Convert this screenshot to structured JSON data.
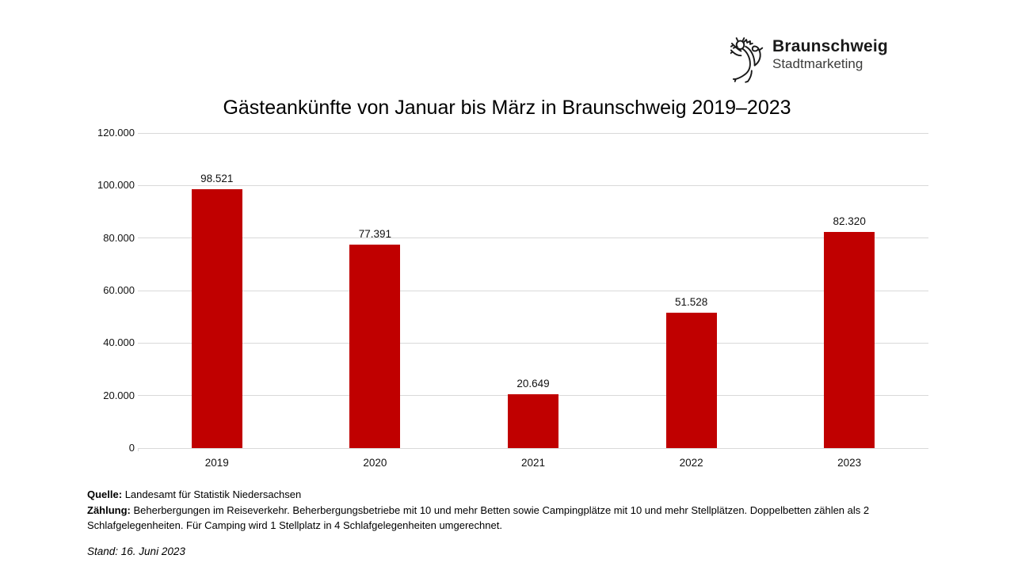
{
  "logo": {
    "brand": "Braunschweig",
    "sub": "Stadtmarketing",
    "icon": "braunschweig-lion"
  },
  "chart_data": {
    "type": "bar",
    "title": "Gästeankünfte von Januar bis März in Braunschweig 2019–2023",
    "categories": [
      "2019",
      "2020",
      "2021",
      "2022",
      "2023"
    ],
    "values": [
      98521,
      77391,
      20649,
      51528,
      82320
    ],
    "value_labels": [
      "98.521",
      "77.391",
      "20.649",
      "51.528",
      "82.320"
    ],
    "xlabel": "",
    "ylabel": "",
    "ylim": [
      0,
      120000
    ],
    "ytick_step": 20000,
    "ytick_labels": [
      "0",
      "20.000",
      "40.000",
      "60.000",
      "80.000",
      "100.000",
      "120.000"
    ],
    "grid": true,
    "legend": "none",
    "bar_color": "#c00000",
    "gridline_color": "#d9d9d9"
  },
  "footer": {
    "source_label": "Quelle:",
    "source_text": " Landesamt für Statistik Niedersachsen",
    "counting_label": "Zählung:",
    "counting_text": " Beherbergungen im Reiseverkehr. Beherbergungsbetriebe mit 10 und mehr Betten sowie Campingplätze mit 10 und mehr Stellplätzen. Doppelbetten zählen als 2 Schlafgelegenheiten. Für Camping wird 1 Stellplatz in 4 Schlafgelegenheiten umgerechnet.",
    "stand_text": "Stand: 16. Juni 2023"
  }
}
